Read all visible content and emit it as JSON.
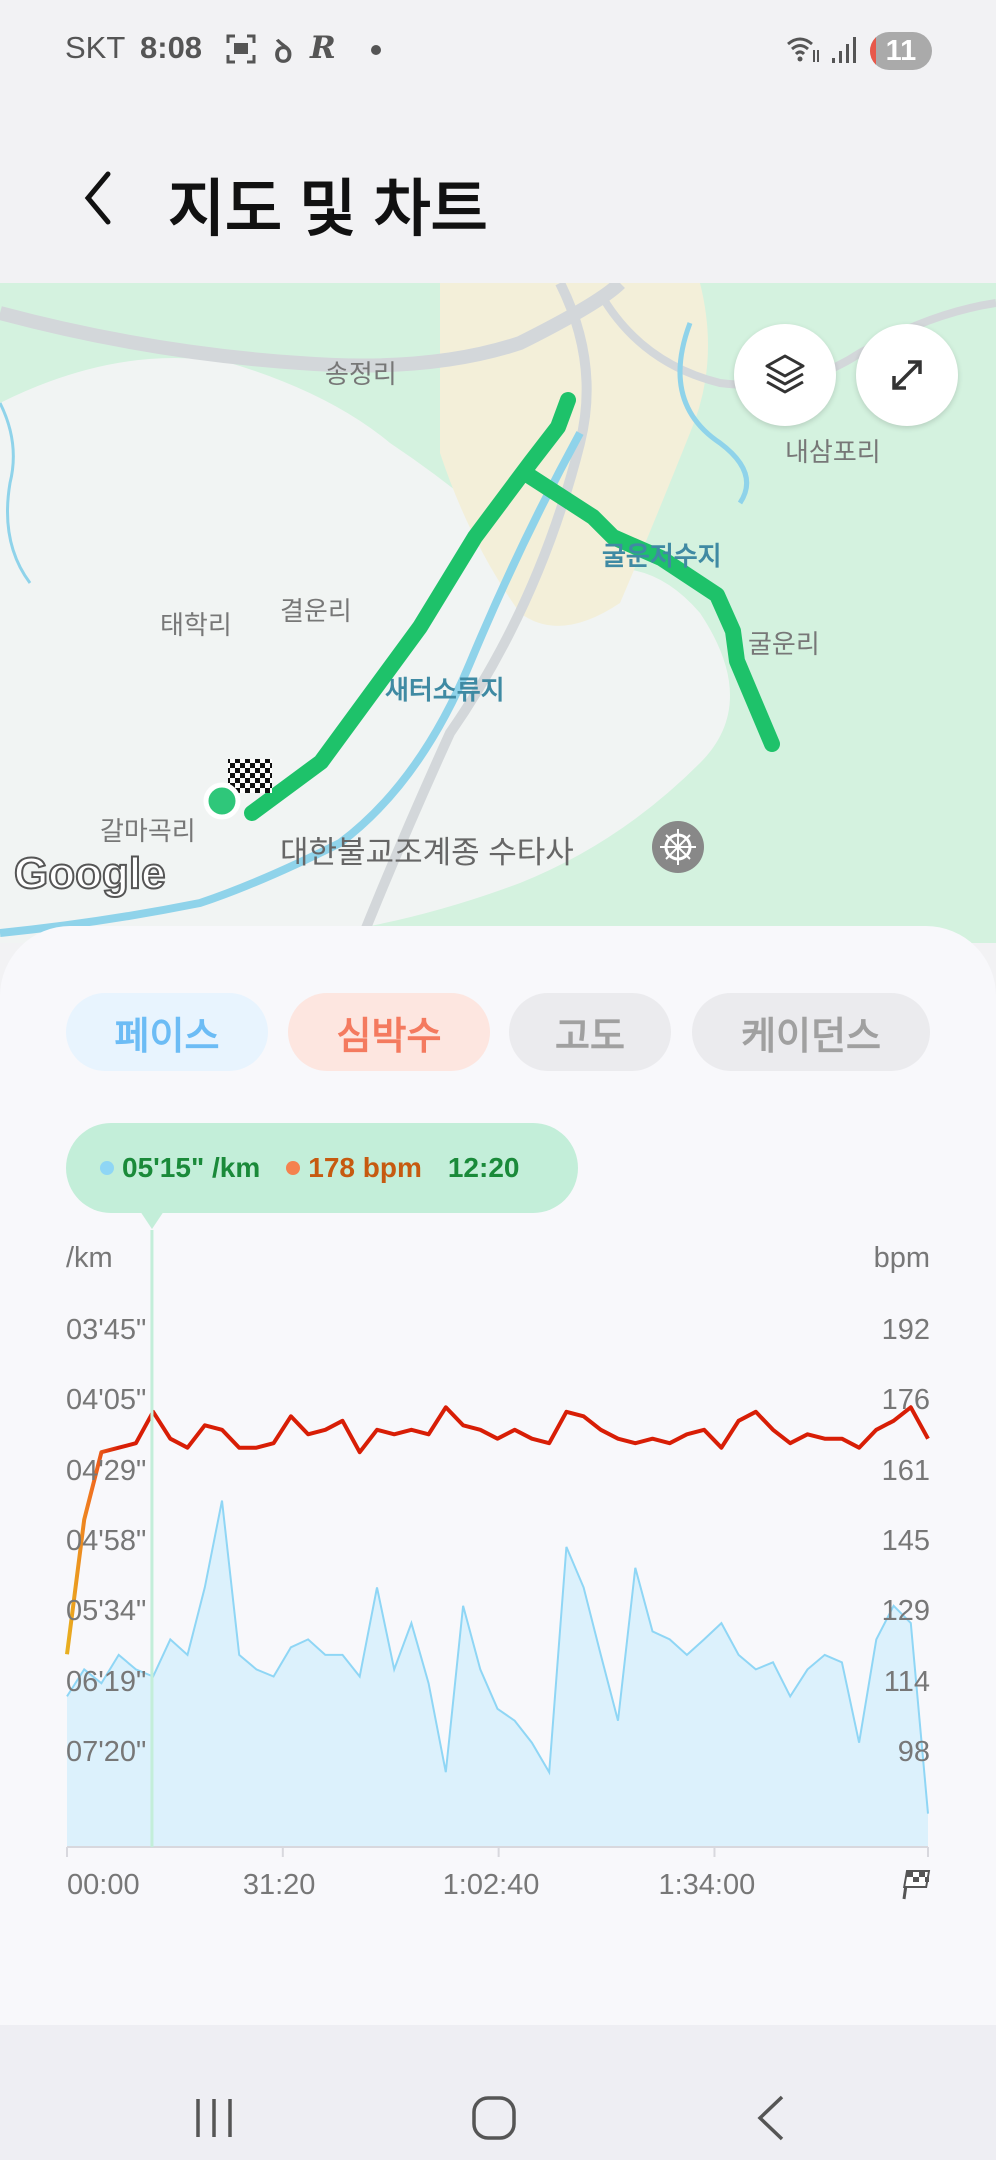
{
  "status_bar": {
    "carrier": "SKT",
    "time": "8:08",
    "notification_count": "11",
    "icons": [
      "screenshot-icon",
      "app-icon",
      "runner-app-icon",
      "dot-icon",
      "wifi-icon",
      "signal-icon",
      "battery-icon"
    ]
  },
  "header": {
    "title": "지도 및 차트",
    "back_icon": "back-arrow-icon"
  },
  "map": {
    "labels": {
      "songjeong": "송정리",
      "naesampo": "내삼포리",
      "gulun_reservoir": "굴운저수지",
      "taehak": "태학리",
      "gyeorun": "결운리",
      "gulun": "굴운리",
      "saeteo": "새터소류지",
      "galmagok": "갈마곡리",
      "temple": "대한불교조계종 수타사"
    },
    "logo": "Google",
    "route_color": "#1ec26a",
    "buttons": {
      "layers": "layers-icon",
      "expand": "expand-icon"
    }
  },
  "tabs": [
    {
      "label": "페이스",
      "active": true,
      "color": "#6cbcf5",
      "bg": "#e8f4fe"
    },
    {
      "label": "심박수",
      "active": true,
      "color": "#f47a5f",
      "bg": "#fde6e0"
    },
    {
      "label": "고도",
      "active": false,
      "color": "#a0a0a0",
      "bg": "#ebebee"
    },
    {
      "label": "케이던스",
      "active": false,
      "color": "#a0a0a0",
      "bg": "#ebebee"
    }
  ],
  "tooltip": {
    "pace": "05'15\" /km",
    "heart_rate": "178 bpm",
    "time": "12:20",
    "pace_color": "#1a8a3a",
    "hr_color": "#c65a10"
  },
  "chart_data": {
    "type": "line",
    "left_axis_label": "/km",
    "right_axis_label": "bpm",
    "pace_ticks": [
      "03'45\"",
      "04'05\"",
      "04'29\"",
      "04'58\"",
      "05'34\"",
      "06'19\"",
      "07'20\""
    ],
    "bpm_ticks": [
      "192",
      "176",
      "161",
      "145",
      "129",
      "114",
      "98"
    ],
    "x_ticks": [
      "00:00",
      "31:20",
      "1:02:40",
      "1:34:00"
    ],
    "x_end_icon": "finish-flag-icon",
    "xlim": [
      "0:00",
      "2:05:00"
    ],
    "cursor_time": "12:20",
    "x": [
      "0:00",
      "2:30",
      "5:00",
      "7:30",
      "10:00",
      "12:30",
      "15:00",
      "17:30",
      "20:00",
      "22:30",
      "25:00",
      "27:30",
      "30:00",
      "32:30",
      "35:00",
      "37:30",
      "40:00",
      "42:30",
      "45:00",
      "47:30",
      "50:00",
      "52:30",
      "55:00",
      "57:30",
      "1:00:00",
      "1:02:30",
      "1:05:00",
      "1:07:30",
      "1:10:00",
      "1:12:30",
      "1:15:00",
      "1:17:30",
      "1:20:00",
      "1:22:30",
      "1:25:00",
      "1:27:30",
      "1:30:00",
      "1:32:30",
      "1:35:00",
      "1:37:30",
      "1:40:00",
      "1:42:30",
      "1:45:00",
      "1:47:30",
      "1:50:00",
      "1:52:30",
      "1:55:00",
      "1:57:30",
      "2:00:00",
      "2:02:30",
      "2:05:00"
    ],
    "series": [
      {
        "key": "pace",
        "axis": "left",
        "color": "#8fd6f5",
        "fill": "#dcf1fc",
        "values": [
          "06'30\"",
          "06'10\"",
          "06'20\"",
          "06'00\"",
          "06'10\"",
          "06'15\"",
          "05'50\"",
          "06'00\"",
          "05'20\"",
          "04'40\"",
          "06'00\"",
          "06'10\"",
          "06'15\"",
          "05'55\"",
          "05'50\"",
          "06'00\"",
          "06'00\"",
          "06'15\"",
          "05'20\"",
          "06'10\"",
          "05'40\"",
          "06'20\"",
          "07'40\"",
          "05'30\"",
          "06'10\"",
          "06'40\"",
          "06'50\"",
          "07'10\"",
          "07'40\"",
          "05'00\"",
          "05'20\"",
          "06'00\"",
          "06'50\"",
          "05'10\"",
          "05'45\"",
          "05'50\"",
          "06'00\"",
          "05'50\"",
          "05'40\"",
          "06'00\"",
          "06'10\"",
          "06'05\"",
          "06'30\"",
          "06'10\"",
          "06'00\"",
          "06'05\"",
          "07'10\"",
          "05'50\"",
          "05'30\"",
          "05'40\"",
          "08'30\""
        ]
      },
      {
        "key": "heart_rate",
        "axis": "right",
        "color": "#d81e06",
        "values": [
          120,
          150,
          165,
          166,
          167,
          174,
          168,
          166,
          171,
          170,
          166,
          166,
          167,
          173,
          169,
          170,
          172,
          165,
          170,
          169,
          170,
          169,
          175,
          171,
          170,
          168,
          170,
          168,
          167,
          174,
          173,
          170,
          168,
          167,
          168,
          167,
          169,
          170,
          166,
          172,
          174,
          170,
          167,
          169,
          168,
          168,
          166,
          170,
          172,
          175,
          168
        ]
      }
    ]
  },
  "nav_bar": {
    "recent": "recent-apps-icon",
    "home": "home-icon",
    "back": "back-icon"
  }
}
